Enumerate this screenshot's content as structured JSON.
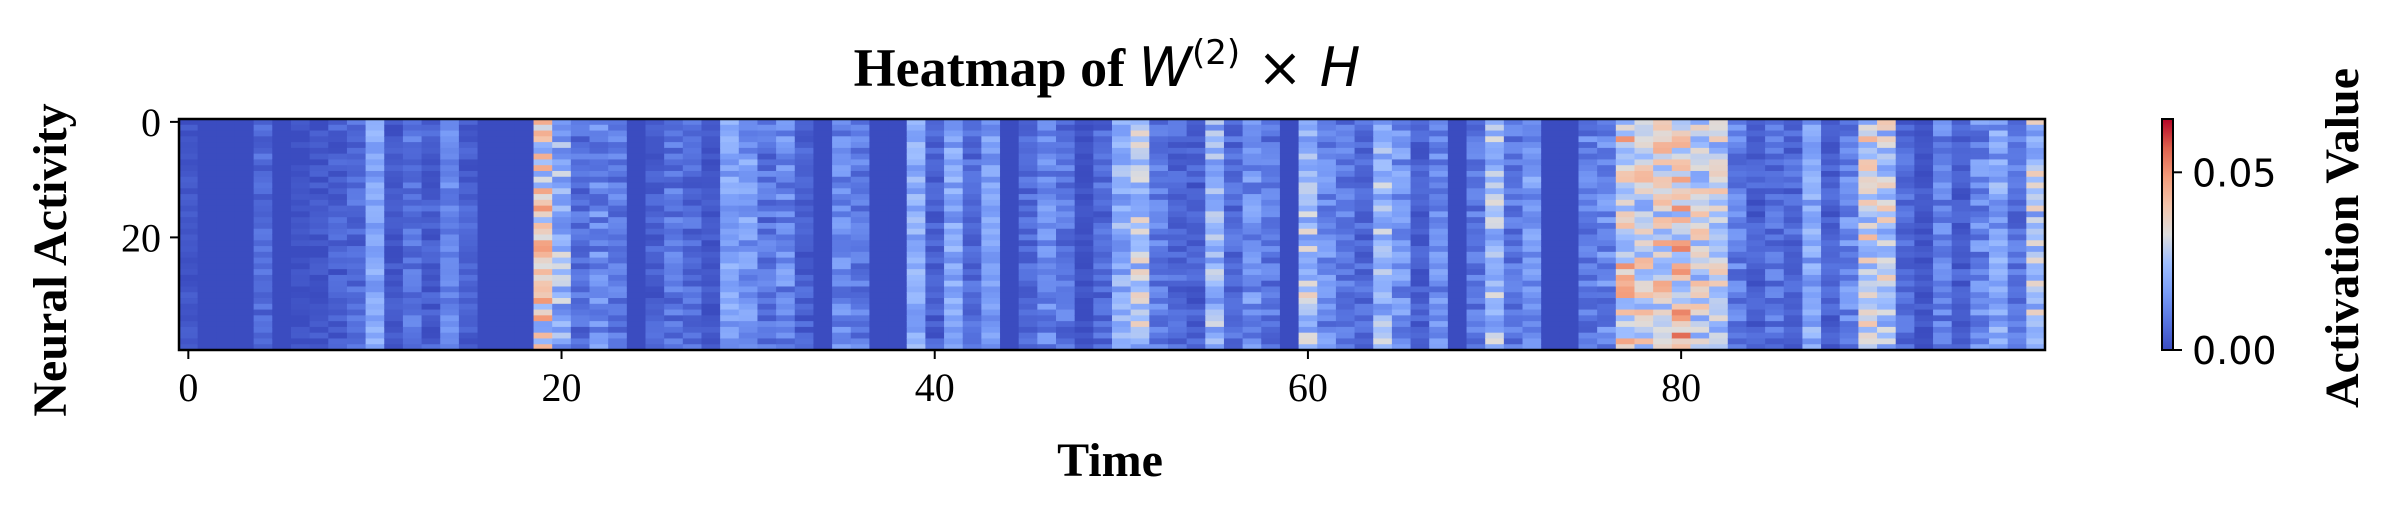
{
  "chart_data": {
    "type": "heatmap",
    "title": {
      "prefix": "Heatmap of ",
      "math_base": "W",
      "math_sup": "(2)",
      "math_rest": " × H"
    },
    "xlabel": "Time",
    "ylabel": "Neural Activity",
    "colorbar_label": "Activation Value",
    "colormap": "coolwarm",
    "n_rows": 40,
    "n_cols": 100,
    "xlim": [
      -0.5,
      99.5
    ],
    "ylim": [
      39.5,
      -0.5
    ],
    "x_ticks": [
      0,
      20,
      40,
      60,
      80
    ],
    "x_tick_labels": [
      "0",
      "20",
      "40",
      "60",
      "80"
    ],
    "y_ticks": [
      0,
      20
    ],
    "y_tick_labels": [
      "0",
      "20"
    ],
    "colorbar_range": [
      0.0,
      0.065
    ],
    "colorbar_ticks": [
      0.0,
      0.05
    ],
    "colorbar_tick_labels": [
      "0.00",
      "0.05"
    ],
    "column_mean_activation": [
      0.002,
      0.0,
      0.0,
      0.0,
      0.006,
      0.0,
      0.001,
      0.002,
      0.004,
      0.006,
      0.018,
      0.002,
      0.008,
      0.004,
      0.012,
      0.004,
      0.0,
      0.0,
      0.0,
      0.032,
      0.022,
      0.007,
      0.012,
      0.009,
      0.0,
      0.004,
      0.008,
      0.006,
      0.002,
      0.018,
      0.016,
      0.008,
      0.012,
      0.004,
      0.0,
      0.012,
      0.009,
      0.0,
      0.0,
      0.02,
      0.004,
      0.018,
      0.006,
      0.016,
      0.0,
      0.006,
      0.012,
      0.008,
      0.001,
      0.006,
      0.02,
      0.026,
      0.01,
      0.006,
      0.004,
      0.022,
      0.006,
      0.014,
      0.008,
      0.0,
      0.026,
      0.012,
      0.009,
      0.006,
      0.022,
      0.014,
      0.004,
      0.012,
      0.0,
      0.008,
      0.024,
      0.008,
      0.016,
      0.0,
      0.0,
      0.01,
      0.012,
      0.035,
      0.03,
      0.032,
      0.038,
      0.03,
      0.028,
      0.01,
      0.004,
      0.008,
      0.006,
      0.018,
      0.004,
      0.012,
      0.03,
      0.028,
      0.006,
      0.002,
      0.01,
      0.004,
      0.012,
      0.018,
      0.008,
      0.026
    ],
    "column_variability": [
      0.002,
      0.0,
      0.0,
      0.0,
      0.004,
      0.0,
      0.002,
      0.003,
      0.004,
      0.005,
      0.006,
      0.003,
      0.005,
      0.004,
      0.005,
      0.004,
      0.0,
      0.0,
      0.0,
      0.018,
      0.012,
      0.006,
      0.008,
      0.006,
      0.0,
      0.004,
      0.006,
      0.005,
      0.003,
      0.006,
      0.008,
      0.006,
      0.008,
      0.004,
      0.0,
      0.007,
      0.006,
      0.0,
      0.0,
      0.006,
      0.004,
      0.007,
      0.005,
      0.006,
      0.0,
      0.005,
      0.007,
      0.006,
      0.002,
      0.005,
      0.008,
      0.012,
      0.006,
      0.005,
      0.004,
      0.01,
      0.005,
      0.008,
      0.006,
      0.0,
      0.012,
      0.008,
      0.006,
      0.005,
      0.01,
      0.008,
      0.004,
      0.007,
      0.0,
      0.006,
      0.01,
      0.006,
      0.008,
      0.0,
      0.0,
      0.007,
      0.008,
      0.016,
      0.014,
      0.015,
      0.018,
      0.014,
      0.013,
      0.007,
      0.004,
      0.006,
      0.005,
      0.008,
      0.004,
      0.008,
      0.014,
      0.013,
      0.005,
      0.003,
      0.007,
      0.004,
      0.008,
      0.009,
      0.006,
      0.014
    ],
    "grid": false
  }
}
